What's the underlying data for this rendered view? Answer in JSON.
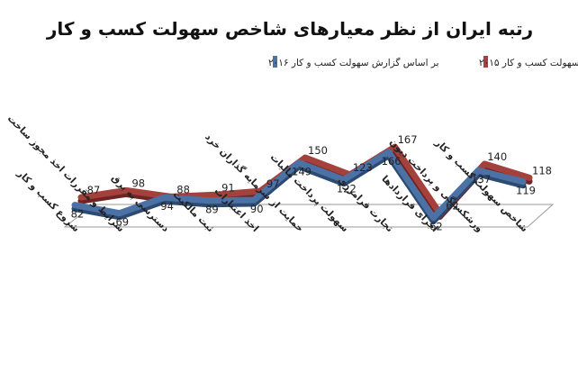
{
  "colors": {
    "series_2015": "#a5413d",
    "series_2015_shadow": "#6e2422",
    "series_2016": "#4c72a5",
    "series_2016_shadow": "#2c4a72",
    "floor_stroke": "#9a9a9a"
  },
  "chart_data": {
    "type": "line",
    "title": "رتبه ایران از نظر معیارهای شاخص سهولت کسب و کار",
    "categories": [
      "شروع کسب و کار",
      "شرایط و مقررات اخذ مجوز ساخت",
      "دسترسی به برق",
      "ثبت مالکیت",
      "اخذ اعتبارات",
      "حمایت از سرمایه گذاران خرد",
      "سهولت پرداخت مالیات",
      "تجارت فرامرزی",
      "اجرای قراردادها",
      "ورشکستگی و پرداخت دیون",
      "شاخص سهولت کسب و کار"
    ],
    "series": [
      {
        "name": "بر اساس گزارش سهولت کسب و کار ۲۰۱۵",
        "values": [
          87,
          98,
          88,
          91,
          97,
          150,
          123,
          167,
          62,
          140,
          118
        ]
      },
      {
        "name": "بر اساس گزارش سهولت کسب و کار ۲۰۱۶",
        "values": [
          82,
          69,
          94,
          89,
          90,
          149,
          122,
          166,
          62,
          137,
          119
        ]
      }
    ],
    "legend_position": "top",
    "grid": false
  }
}
